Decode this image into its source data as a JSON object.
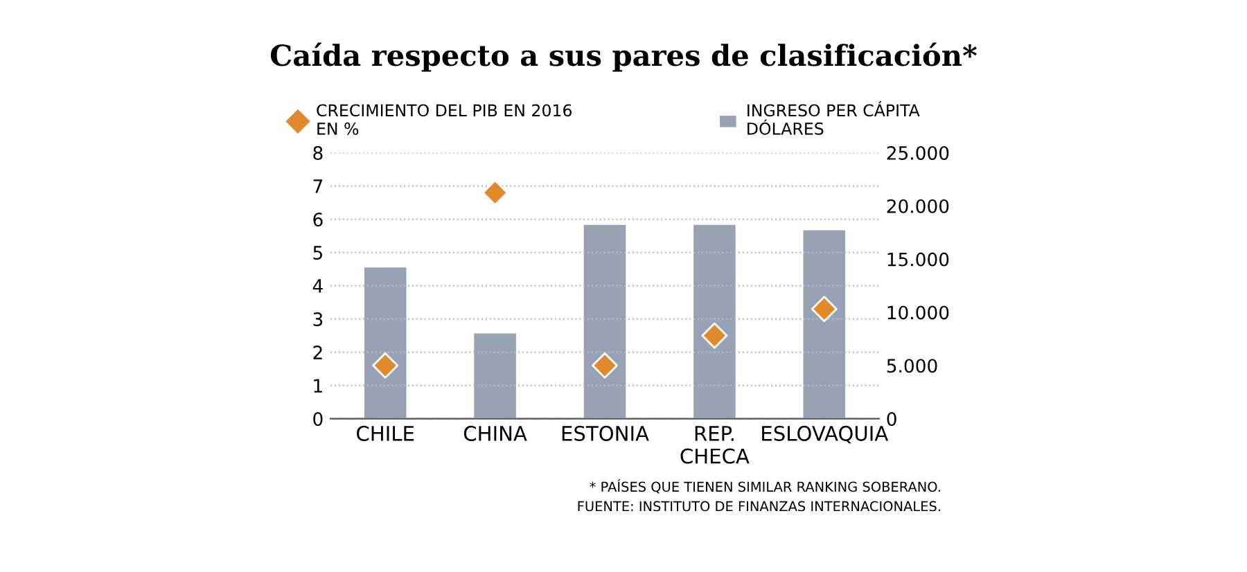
{
  "chart_data": {
    "type": "bar",
    "title": "Caída respecto a sus pares de clasificación*",
    "categories": [
      "CHILE",
      "CHINA",
      "ESTONIA",
      "REP.\nCHECA",
      "ESLOVAQUIA"
    ],
    "series": [
      {
        "name": "CRECIMIENTO DEL PIB EN 2016\nEN %",
        "type": "scatter",
        "color": "#e08a2a",
        "axis": "y",
        "values": [
          1.6,
          6.8,
          1.6,
          2.5,
          3.3
        ]
      },
      {
        "name": "INGRESO PER CÁPITA\nDÓLARES",
        "color": "#97a3b4",
        "axis": "y2",
        "values": [
          14300,
          8100,
          18300,
          18300,
          17800
        ]
      }
    ],
    "ylim": [
      0,
      8
    ],
    "yticks": [
      0,
      1,
      2,
      3,
      4,
      5,
      6,
      7,
      8
    ],
    "y2lim": [
      0,
      25000
    ],
    "y2ticks": [
      {
        "value": 0,
        "label": "0"
      },
      {
        "value": 5000,
        "label": "5.000"
      },
      {
        "value": 10000,
        "label": "10.000"
      },
      {
        "value": 15000,
        "label": "15.000"
      },
      {
        "value": 20000,
        "label": "20.000"
      },
      {
        "value": 25000,
        "label": "25.000"
      }
    ],
    "grid": "y",
    "legend": "top",
    "marker": "diamond",
    "annotations": [
      "* PAÍSES QUE TIENEN SIMILAR RANKING SOBERANO.",
      "FUENTE: INSTITUTO DE FINANZAS INTERNACIONALES."
    ]
  }
}
